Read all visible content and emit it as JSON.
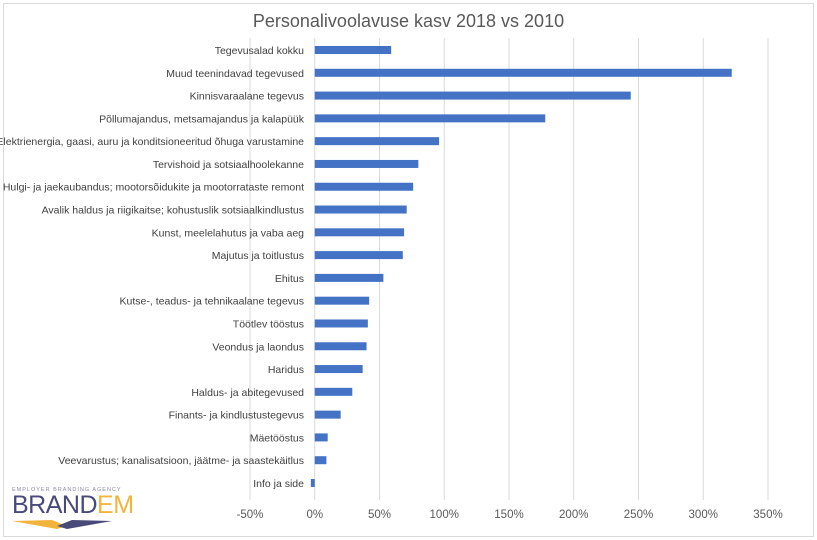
{
  "chart_data": {
    "type": "bar",
    "orientation": "horizontal",
    "title": "Personalivoolavuse kasv 2018 vs 2010",
    "categories": [
      "Tegevusalad kokku",
      "Muud teenindavad tegevused",
      "Kinnisvaraalane tegevus",
      "Põllumajandus, metsamajandus ja kalapüük",
      "Elektrienergia, gaasi, auru ja konditsioneeritud õhuga varustamine",
      "Tervishoid ja sotsiaalhoolekanne",
      "Hulgi- ja jaekaubandus; mootorsõidukite ja mootorrataste remont",
      "Avalik haldus ja riigikaitse; kohustuslik sotsiaalkindlustus",
      "Kunst, meelelahutus ja vaba aeg",
      "Majutus ja toitlustus",
      "Ehitus",
      "Kutse-, teadus- ja tehnikaalane tegevus",
      "Töötlev tööstus",
      "Veondus ja laondus",
      "Haridus",
      "Haldus- ja abitegevused",
      "Finants- ja kindlustustegevus",
      "Mäetööstus",
      "Veevarustus; kanalisatsioon, jäätme- ja saastekäitlus",
      "Info ja side"
    ],
    "values": [
      59,
      322,
      244,
      178,
      96,
      80,
      76,
      71,
      69,
      68,
      53,
      42,
      41,
      40,
      37,
      29,
      20,
      10,
      9,
      -3
    ],
    "unit": "%",
    "xlim": [
      -50,
      350
    ],
    "xticks": [
      "-50%",
      "0%",
      "50%",
      "100%",
      "150%",
      "200%",
      "250%",
      "300%",
      "350%"
    ],
    "xtick_values": [
      -50,
      0,
      50,
      100,
      150,
      200,
      250,
      300,
      350
    ],
    "grid": true,
    "legend": "none",
    "bar_color": "#4472c4"
  },
  "logo": {
    "tagline": "EMPLOYER BRANDING AGENCY",
    "name_a": "BRAND",
    "name_b": "EM"
  }
}
